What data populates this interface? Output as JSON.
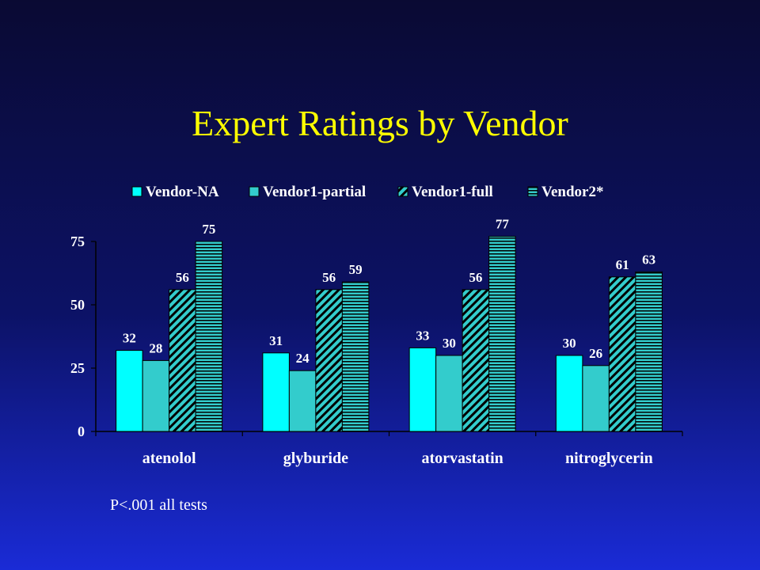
{
  "slide": {
    "title": "Expert Ratings by Vendor",
    "footnote": "P<.001 all tests"
  },
  "chart_data": {
    "type": "bar",
    "title": "Expert Ratings by Vendor",
    "xlabel": "",
    "ylabel": "",
    "categories": [
      "atenolol",
      "glyburide",
      "atorvastatin",
      "nitroglycerin"
    ],
    "series": [
      {
        "name": "Vendor-NA",
        "values": [
          32,
          31,
          33,
          30
        ],
        "color": "#00ffff",
        "pattern": "solid"
      },
      {
        "name": "Vendor1-partial",
        "values": [
          28,
          24,
          30,
          26
        ],
        "color": "#33cccc",
        "pattern": "solid"
      },
      {
        "name": "Vendor1-full",
        "values": [
          56,
          56,
          56,
          61
        ],
        "color": "#33cccc",
        "pattern": "diagonal-hatch"
      },
      {
        "name": "Vendor2*",
        "values": [
          75,
          59,
          77,
          63
        ],
        "color": "#33cccc",
        "pattern": "horizontal-stripes"
      }
    ],
    "ylim": [
      0,
      75
    ],
    "yticks": [
      0,
      25,
      50,
      75
    ],
    "grid": false,
    "legend_position": "top",
    "data_labels": true
  }
}
